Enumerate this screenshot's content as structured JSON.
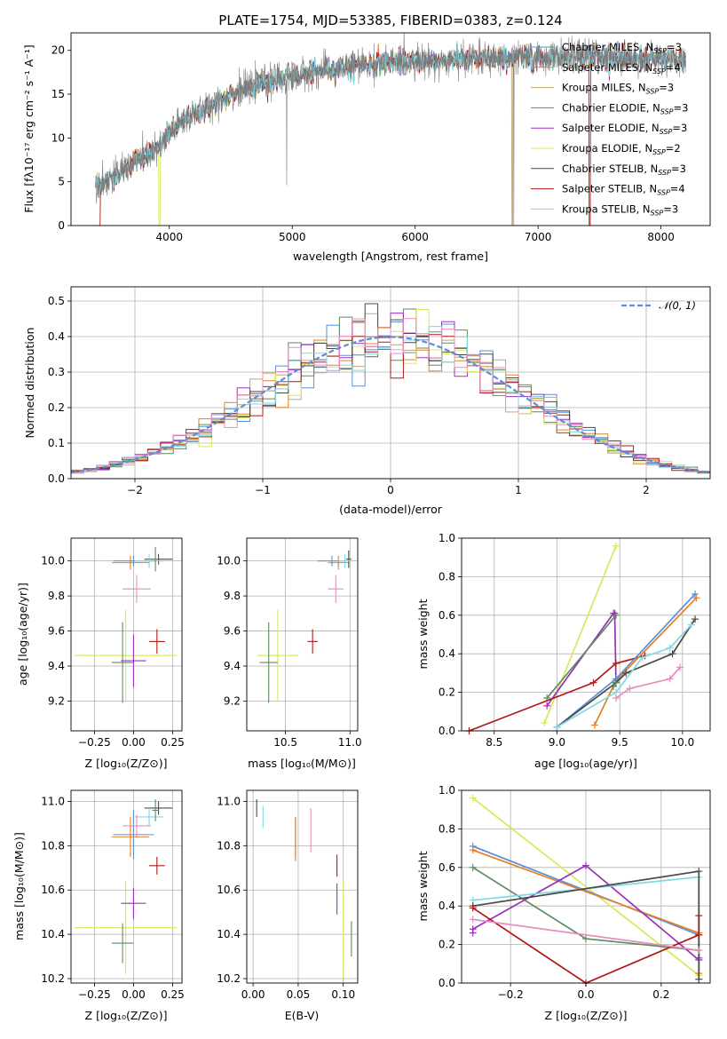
{
  "colors": {
    "chabrier_miles": "#5a8fd8",
    "salpeter_miles": "#e57f27",
    "kroupa_miles": "#bfa76a",
    "chabrier_elodie": "#5f8a62",
    "salpeter_elodie": "#9b30b8",
    "kroupa_elodie": "#d7e858",
    "chabrier_stelib": "#4a4a4a",
    "salpeter_stelib": "#b01818",
    "kroupa_stelib": "#7fd9e2",
    "extra_pink": "#e88cc0",
    "normal": "#5b8fd6"
  },
  "chart_data": [
    {
      "id": "spectrum",
      "type": "line",
      "title": "PLATE=1754, MJD=53385, FIBERID=0383, z=0.124",
      "xlabel": "wavelength [Angstrom, rest frame]",
      "ylabel": "Flux [fλ10⁻¹⁷ erg cm⁻² s⁻¹ A⁻¹]",
      "xlim": [
        3200,
        8400
      ],
      "ylim": [
        0,
        22
      ],
      "xticks": [
        "4000",
        "5000",
        "6000",
        "7000",
        "8000"
      ],
      "yticks": [
        "0",
        "5",
        "10",
        "15",
        "20"
      ],
      "xtick_values": [
        4000,
        5000,
        6000,
        7000,
        8000
      ],
      "ytick_values": [
        0,
        5,
        10,
        15,
        20
      ],
      "legend_position": "right",
      "legend": [
        "Chabrier MILES, N_SSP=3",
        "Salpeter MILES, N_SSP=4",
        "Kroupa MILES, N_SSP=3",
        "Chabrier ELODIE, N_SSP=3",
        "Salpeter ELODIE, N_SSP=3",
        "Kroupa ELODIE, N_SSP=2",
        "Chabrier STELIB, N_SSP=3",
        "Salpeter STELIB, N_SSP=4",
        "Kroupa STELIB, N_SSP=3"
      ],
      "legend_display": [
        [
          "Chabrier MILES, N",
          "SSP",
          "=3"
        ],
        [
          "Salpeter MILES, N",
          "SSP",
          "=4"
        ],
        [
          "Kroupa MILES, N",
          "SSP",
          "=3"
        ],
        [
          "Chabrier ELODIE, N",
          "SSP",
          "=3"
        ],
        [
          "Salpeter ELODIE, N",
          "SSP",
          "=3"
        ],
        [
          "Kroupa ELODIE, N",
          "SSP",
          "=2"
        ],
        [
          "Chabrier STELIB, N",
          "SSP",
          "=3"
        ],
        [
          "Salpeter STELIB, N",
          "SSP",
          "=4"
        ],
        [
          "Kroupa STELIB, N",
          "SSP",
          "=3"
        ]
      ],
      "continuum": {
        "x": [
          3400,
          3500,
          3600,
          3700,
          3800,
          3900,
          4000,
          4100,
          4200,
          4300,
          4400,
          4500,
          4600,
          4700,
          4800,
          4900,
          5000,
          5200,
          5400,
          5600,
          5800,
          6000,
          6200,
          6400,
          6600,
          6800,
          7000,
          7200,
          7400,
          7600,
          7800,
          8000,
          8200
        ],
        "y": [
          4.8,
          5.2,
          6.0,
          7.2,
          8.0,
          8.5,
          10.5,
          11.8,
          12.8,
          13.3,
          14.2,
          15.0,
          15.5,
          16.0,
          16.5,
          16.8,
          17.0,
          17.6,
          18.0,
          18.4,
          18.6,
          18.8,
          18.8,
          19.0,
          19.0,
          19.1,
          19.2,
          19.3,
          19.4,
          19.2,
          19.0,
          19.0,
          18.9
        ]
      },
      "model_range": [
        3400,
        8200
      ],
      "data_range": [
        3400,
        8200
      ]
    },
    {
      "id": "residuals",
      "type": "histogram",
      "xlabel": "(data-model)/error",
      "ylabel": "Normed distribution",
      "xlim": [
        -2.5,
        2.5
      ],
      "ylim": [
        0,
        0.54
      ],
      "xticks": [
        "−2",
        "−1",
        "0",
        "1",
        "2"
      ],
      "yticks": [
        "0.0",
        "0.1",
        "0.2",
        "0.3",
        "0.4",
        "0.5"
      ],
      "xtick_values": [
        -2,
        -1,
        0,
        1,
        2
      ],
      "ytick_values": [
        0,
        0.1,
        0.2,
        0.3,
        0.4,
        0.5
      ],
      "legend": [
        "𝒩(0, 1)"
      ],
      "legend_position": "top-right",
      "bin_width": 0.1,
      "bin_start": -2.5
    },
    {
      "id": "age-vs-z",
      "type": "scatter",
      "xlabel": "Z [log₁₀(Z/Z⊙)]",
      "ylabel": "age  [log₁₀(age/yr)]",
      "xlim": [
        -0.4,
        0.31
      ],
      "ylim": [
        9.03,
        10.13
      ],
      "xticks": [
        "−0.25",
        "0.00",
        "0.25"
      ],
      "yticks": [
        "9.2",
        "9.4",
        "9.6",
        "9.8",
        "10.0"
      ],
      "xtick_values": [
        -0.25,
        0,
        0.25
      ],
      "ytick_values": [
        9.2,
        9.4,
        9.6,
        9.8,
        10.0
      ],
      "points": [
        {
          "color": "chabrier_miles",
          "x": 0.0,
          "y": 10.0,
          "xerr": 0.13,
          "yerr": 0.03
        },
        {
          "color": "salpeter_miles",
          "x": -0.02,
          "y": 9.99,
          "xerr": 0.12,
          "yerr": 0.04
        },
        {
          "color": "kroupa_elodie",
          "x": -0.05,
          "y": 9.46,
          "xerr": 0.33,
          "yerr": 0.26
        },
        {
          "color": "chabrier_elodie",
          "x": -0.07,
          "y": 9.42,
          "xerr": 0.07,
          "yerr": 0.23
        },
        {
          "color": "salpeter_elodie",
          "x": 0.0,
          "y": 9.43,
          "xerr": 0.08,
          "yerr": 0.15
        },
        {
          "color": "salpeter_stelib",
          "x": 0.15,
          "y": 9.54,
          "xerr": 0.05,
          "yerr": 0.07
        },
        {
          "color": "chabrier_stelib",
          "x": 0.16,
          "y": 10.01,
          "xerr": 0.09,
          "yerr": 0.03
        },
        {
          "color": "kroupa_stelib",
          "x": 0.1,
          "y": 10.0,
          "xerr": 0.09,
          "yerr": 0.04
        },
        {
          "color": "chabrier_elodie",
          "x": 0.14,
          "y": 10.01,
          "xerr": 0.02,
          "yerr": 0.07
        },
        {
          "color": "extra_pink",
          "x": 0.02,
          "y": 9.84,
          "xerr": 0.09,
          "yerr": 0.08
        }
      ]
    },
    {
      "id": "age-vs-mass",
      "type": "scatter",
      "xlabel": "mass [log₁₀(M/M⊙)]",
      "ylabel": "",
      "xlim": [
        10.2,
        11.06
      ],
      "ylim": [
        9.03,
        10.13
      ],
      "xticks": [
        "10.5",
        "11.0"
      ],
      "yticks": [
        "9.2",
        "9.4",
        "9.6",
        "9.8",
        "10.0"
      ],
      "xtick_values": [
        10.5,
        11.0
      ],
      "ytick_values": [
        9.2,
        9.4,
        9.6,
        9.8,
        10.0
      ],
      "points": [
        {
          "color": "chabrier_miles",
          "x": 10.86,
          "y": 10.0,
          "xerr": 0.11,
          "yerr": 0.03
        },
        {
          "color": "salpeter_miles",
          "x": 10.91,
          "y": 9.99,
          "xerr": 0.08,
          "yerr": 0.04
        },
        {
          "color": "kroupa_elodie",
          "x": 10.44,
          "y": 9.46,
          "xerr": 0.16,
          "yerr": 0.26
        },
        {
          "color": "chabrier_elodie",
          "x": 10.37,
          "y": 9.42,
          "xerr": 0.07,
          "yerr": 0.23
        },
        {
          "color": "salpeter_stelib",
          "x": 10.71,
          "y": 9.54,
          "xerr": 0.04,
          "yerr": 0.07
        },
        {
          "color": "chabrier_stelib",
          "x": 10.99,
          "y": 10.01,
          "xerr": 0.02,
          "yerr": 0.05
        },
        {
          "color": "kroupa_stelib",
          "x": 10.96,
          "y": 10.0,
          "xerr": 0.05,
          "yerr": 0.04
        },
        {
          "color": "extra_pink",
          "x": 10.89,
          "y": 9.84,
          "xerr": 0.06,
          "yerr": 0.08
        }
      ]
    },
    {
      "id": "weight-vs-age",
      "type": "line",
      "xlabel": "age  [log₁₀(age/yr)]",
      "ylabel": "mass weight",
      "xlim": [
        8.24,
        10.22
      ],
      "ylim": [
        0,
        1.0
      ],
      "xticks": [
        "8.5",
        "9.0",
        "9.5",
        "10.0"
      ],
      "yticks": [
        "0.0",
        "0.2",
        "0.4",
        "0.6",
        "0.8",
        "1.0"
      ],
      "xtick_values": [
        8.5,
        9.0,
        9.5,
        10.0
      ],
      "ytick_values": [
        0,
        0.2,
        0.4,
        0.6,
        0.8,
        1.0
      ],
      "series": [
        {
          "color": "kroupa_elodie",
          "x": [
            8.9,
            9.47
          ],
          "y": [
            0.04,
            0.96
          ]
        },
        {
          "color": "salpeter_elodie",
          "x": [
            8.92,
            9.45,
            9.46,
            9.47
          ],
          "y": [
            0.13,
            0.61,
            0.61,
            0.26
          ]
        },
        {
          "color": "chabrier_elodie",
          "x": [
            8.92,
            9.47
          ],
          "y": [
            0.17,
            0.6
          ]
        },
        {
          "color": "salpeter_stelib",
          "x": [
            8.3,
            9.29,
            9.47,
            9.7
          ],
          "y": [
            0.0,
            0.25,
            0.35,
            0.39
          ]
        },
        {
          "color": "salpeter_miles",
          "x": [
            9.3,
            9.47,
            10.11
          ],
          "y": [
            0.03,
            0.26,
            0.69
          ]
        },
        {
          "color": "chabrier_miles",
          "x": [
            9.0,
            9.47,
            10.1
          ],
          "y": [
            0.02,
            0.27,
            0.71
          ]
        },
        {
          "color": "chabrier_stelib",
          "x": [
            9.0,
            9.47,
            9.55,
            9.92,
            10.1
          ],
          "y": [
            0.02,
            0.25,
            0.3,
            0.4,
            0.58
          ]
        },
        {
          "color": "kroupa_stelib",
          "x": [
            9.0,
            9.47,
            9.68,
            9.9,
            10.07
          ],
          "y": [
            0.02,
            0.2,
            0.38,
            0.43,
            0.55
          ]
        },
        {
          "color": "extra_pink",
          "x": [
            9.47,
            9.58,
            9.9,
            9.98
          ],
          "y": [
            0.17,
            0.22,
            0.27,
            0.33
          ]
        },
        {
          "color": "chabrier_elodie",
          "x": [
            9.45,
            9.47
          ],
          "y": [
            0.23,
            0.25
          ]
        }
      ]
    },
    {
      "id": "mass-vs-z",
      "type": "scatter",
      "xlabel": "Z [log₁₀(Z/Z⊙)]",
      "ylabel": "mass [log₁₀(M/M⊙)]",
      "xlim": [
        -0.4,
        0.31
      ],
      "ylim": [
        10.18,
        11.05
      ],
      "xticks": [
        "−0.25",
        "0.00",
        "0.25"
      ],
      "yticks": [
        "10.2",
        "10.4",
        "10.6",
        "10.8",
        "11.0"
      ],
      "xtick_values": [
        -0.25,
        0,
        0.25
      ],
      "ytick_values": [
        10.2,
        10.4,
        10.6,
        10.8,
        11.0
      ],
      "points": [
        {
          "color": "chabrier_miles",
          "x": 0.0,
          "y": 10.85,
          "xerr": 0.13,
          "yerr": 0.11
        },
        {
          "color": "salpeter_miles",
          "x": -0.02,
          "y": 10.84,
          "xerr": 0.12,
          "yerr": 0.09
        },
        {
          "color": "kroupa_elodie",
          "x": -0.05,
          "y": 10.43,
          "xerr": 0.33,
          "yerr": 0.21
        },
        {
          "color": "chabrier_elodie",
          "x": -0.07,
          "y": 10.36,
          "xerr": 0.07,
          "yerr": 0.09
        },
        {
          "color": "salpeter_elodie",
          "x": 0.0,
          "y": 10.54,
          "xerr": 0.08,
          "yerr": 0.07
        },
        {
          "color": "salpeter_stelib",
          "x": 0.15,
          "y": 10.71,
          "xerr": 0.05,
          "yerr": 0.04
        },
        {
          "color": "chabrier_stelib",
          "x": 0.16,
          "y": 10.97,
          "xerr": 0.09,
          "yerr": 0.03
        },
        {
          "color": "kroupa_stelib",
          "x": 0.1,
          "y": 10.93,
          "xerr": 0.09,
          "yerr": 0.04
        },
        {
          "color": "chabrier_elodie",
          "x": 0.14,
          "y": 10.96,
          "xerr": 0.02,
          "yerr": 0.05
        },
        {
          "color": "extra_pink",
          "x": 0.02,
          "y": 10.89,
          "xerr": 0.09,
          "yerr": 0.05
        }
      ]
    },
    {
      "id": "mass-vs-ebv",
      "type": "scatter",
      "xlabel": "E(B-V)",
      "ylabel": "",
      "xlim": [
        -0.007,
        0.116
      ],
      "ylim": [
        10.18,
        11.05
      ],
      "xticks": [
        "0.00",
        "0.05",
        "0.10"
      ],
      "yticks": [
        "10.2",
        "10.4",
        "10.6",
        "10.8",
        "11.0"
      ],
      "xtick_values": [
        0,
        0.05,
        0.1
      ],
      "ytick_values": [
        10.2,
        10.4,
        10.6,
        10.8,
        11.0
      ],
      "points": [
        {
          "color": "chabrier_stelib",
          "x": 0.004,
          "y": 10.97,
          "xerr": 0,
          "yerr": 0.04
        },
        {
          "color": "kroupa_stelib",
          "x": 0.011,
          "y": 10.93,
          "xerr": 0,
          "yerr": 0.05
        },
        {
          "color": "chabrier_miles",
          "x": 0.047,
          "y": 10.84,
          "xerr": 0,
          "yerr": 0.09
        },
        {
          "color": "salpeter_miles",
          "x": 0.047,
          "y": 10.83,
          "xerr": 0,
          "yerr": 0.1
        },
        {
          "color": "extra_pink",
          "x": 0.064,
          "y": 10.87,
          "xerr": 0,
          "yerr": 0.1
        },
        {
          "color": "salpeter_stelib",
          "x": 0.093,
          "y": 10.71,
          "xerr": 0,
          "yerr": 0.05
        },
        {
          "color": "salpeter_elodie",
          "x": 0.093,
          "y": 10.56,
          "xerr": 0,
          "yerr": 0.07
        },
        {
          "color": "kroupa_elodie",
          "x": 0.1,
          "y": 10.42,
          "xerr": 0,
          "yerr": 0.22
        },
        {
          "color": "chabrier_elodie",
          "x": 0.109,
          "y": 10.38,
          "xerr": 0,
          "yerr": 0.08
        }
      ]
    },
    {
      "id": "weight-vs-z",
      "type": "line",
      "xlabel": "Z [log₁₀(Z/Z⊙)]",
      "ylabel": "mass weight",
      "xlim": [
        -0.33,
        0.33
      ],
      "ylim": [
        0,
        1.0
      ],
      "xticks": [
        "−0.2",
        "0.0",
        "0.2"
      ],
      "yticks": [
        "0.0",
        "0.2",
        "0.4",
        "0.6",
        "0.8",
        "1.0"
      ],
      "xtick_values": [
        -0.2,
        0,
        0.2
      ],
      "ytick_values": [
        0,
        0.2,
        0.4,
        0.6,
        0.8,
        1.0
      ],
      "series": [
        {
          "color": "kroupa_elodie",
          "x": [
            -0.3,
            0.3
          ],
          "y": [
            0.96,
            0.04
          ]
        },
        {
          "color": "chabrier_miles",
          "x": [
            -0.3,
            0.3,
            0.3
          ],
          "y": [
            0.71,
            0.25,
            0.12
          ]
        },
        {
          "color": "salpeter_miles",
          "x": [
            -0.3,
            0.3,
            0.3
          ],
          "y": [
            0.69,
            0.26,
            0.05
          ]
        },
        {
          "color": "chabrier_elodie",
          "x": [
            -0.3,
            0.0,
            0.3
          ],
          "y": [
            0.6,
            0.23,
            0.17
          ]
        },
        {
          "color": "salpeter_elodie",
          "x": [
            -0.3,
            -0.3,
            0.0,
            0.3,
            0.3
          ],
          "y": [
            0.26,
            0.28,
            0.61,
            0.12,
            0.13
          ]
        },
        {
          "color": "kroupa_stelib",
          "x": [
            -0.3,
            0.3,
            0.3
          ],
          "y": [
            0.43,
            0.55,
            0.02
          ]
        },
        {
          "color": "chabrier_stelib",
          "x": [
            -0.3,
            0.3,
            0.3
          ],
          "y": [
            0.4,
            0.58,
            0.02
          ]
        },
        {
          "color": "salpeter_stelib",
          "x": [
            -0.3,
            0.0,
            0.3,
            0.3
          ],
          "y": [
            0.39,
            0.0,
            0.25,
            0.35
          ]
        },
        {
          "color": "extra_pink",
          "x": [
            -0.3,
            0.3
          ],
          "y": [
            0.33,
            0.17
          ]
        }
      ]
    }
  ]
}
